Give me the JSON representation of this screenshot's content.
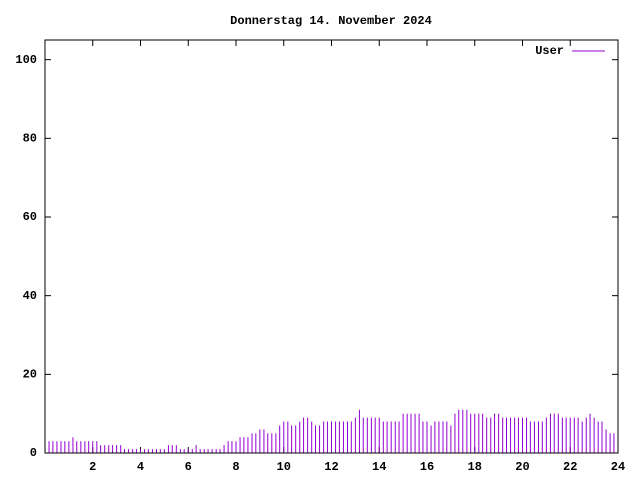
{
  "chart_data": {
    "type": "impulses",
    "title": "Donnerstag 14. November 2024",
    "x": [
      0,
      0.17,
      0.33,
      0.5,
      0.67,
      0.83,
      1,
      1.17,
      1.33,
      1.5,
      1.67,
      1.83,
      2,
      2.17,
      2.33,
      2.5,
      2.67,
      2.83,
      3,
      3.17,
      3.33,
      3.5,
      3.67,
      3.83,
      4,
      4.17,
      4.33,
      4.5,
      4.67,
      4.83,
      5,
      5.17,
      5.33,
      5.5,
      5.67,
      5.83,
      6,
      6.17,
      6.33,
      6.5,
      6.67,
      6.83,
      7,
      7.17,
      7.33,
      7.5,
      7.67,
      7.83,
      8,
      8.17,
      8.33,
      8.5,
      8.67,
      8.83,
      9,
      9.17,
      9.33,
      9.5,
      9.67,
      9.83,
      10,
      10.17,
      10.33,
      10.5,
      10.67,
      10.83,
      11,
      11.17,
      11.33,
      11.5,
      11.67,
      11.83,
      12,
      12.17,
      12.33,
      12.5,
      12.67,
      12.83,
      13,
      13.17,
      13.33,
      13.5,
      13.67,
      13.83,
      14,
      14.17,
      14.33,
      14.5,
      14.67,
      14.83,
      15,
      15.17,
      15.33,
      15.5,
      15.67,
      15.83,
      16,
      16.17,
      16.33,
      16.5,
      16.67,
      16.83,
      17,
      17.17,
      17.33,
      17.5,
      17.67,
      17.83,
      18,
      18.17,
      18.33,
      18.5,
      18.67,
      18.83,
      19,
      19.17,
      19.33,
      19.5,
      19.67,
      19.83,
      20,
      20.17,
      20.33,
      20.5,
      20.67,
      20.83,
      21,
      21.17,
      21.33,
      21.5,
      21.67,
      21.83,
      22,
      22.17,
      22.33,
      22.5,
      22.67,
      22.83,
      23,
      23.17,
      23.33,
      23.5,
      23.67,
      23.83
    ],
    "series": [
      {
        "name": "User",
        "color": "#9400d3",
        "values": [
          4,
          3,
          3,
          3,
          3,
          3,
          3,
          4,
          3,
          3,
          3,
          3,
          3,
          3,
          2,
          2,
          2,
          2,
          2,
          2,
          1,
          1,
          1,
          1,
          1,
          1,
          1,
          1,
          1,
          1,
          1,
          2,
          2,
          2,
          1,
          1,
          1,
          1,
          2,
          1,
          1,
          1,
          1,
          1,
          1,
          2,
          3,
          3,
          3,
          4,
          4,
          4,
          5,
          5,
          6,
          6,
          5,
          5,
          5,
          7,
          8,
          8,
          7,
          7,
          8,
          9,
          9,
          8,
          7,
          7,
          8,
          8,
          8,
          8,
          8,
          8,
          8,
          8,
          9,
          11,
          9,
          9,
          9,
          9,
          9,
          8,
          8,
          8,
          8,
          8,
          10,
          10,
          10,
          10,
          10,
          8,
          8,
          7,
          8,
          8,
          8,
          8,
          7,
          10,
          11,
          11,
          11,
          10,
          10,
          10,
          10,
          9,
          9,
          10,
          10,
          9,
          9,
          9,
          9,
          9,
          9,
          9,
          8,
          8,
          8,
          8,
          9,
          10,
          10,
          10,
          9,
          9,
          9,
          9,
          9,
          8,
          9,
          10,
          9,
          8,
          8,
          6,
          5,
          5
        ]
      }
    ],
    "xlim": [
      0,
      24
    ],
    "xticks": [
      2,
      4,
      6,
      8,
      10,
      12,
      14,
      16,
      18,
      20,
      22,
      24
    ],
    "ylim": [
      0,
      105
    ],
    "yticks": [
      0,
      20,
      40,
      60,
      80,
      100
    ],
    "legend": "top-right"
  }
}
